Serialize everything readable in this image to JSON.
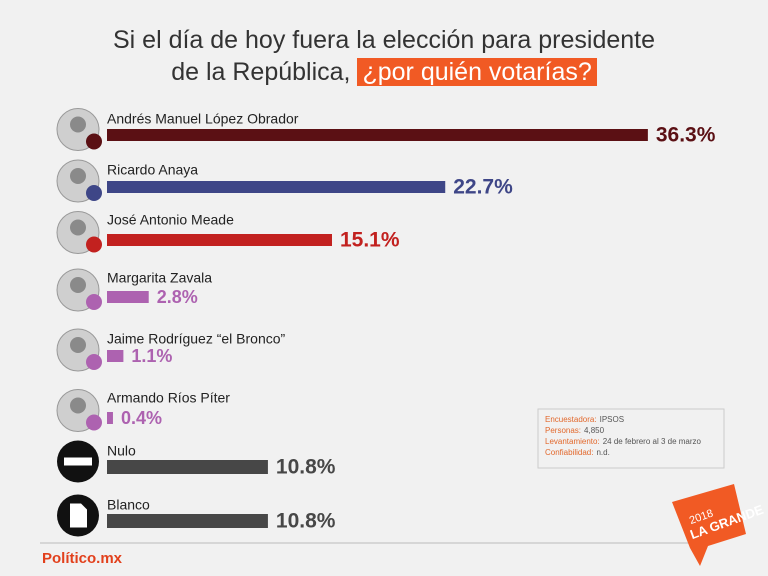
{
  "chart_data": {
    "type": "bar",
    "orientation": "horizontal",
    "title": [
      "Si el día de hoy fuera la elección para presidente",
      "de la República,"
    ],
    "title_highlight": "¿por quién votarías?",
    "categories": [
      "Andrés Manuel López Obrador",
      "Ricardo Anaya",
      "José Antonio Meade",
      "Margarita Zavala",
      "Jaime Rodríguez “el Bronco”",
      "Armando Ríos Píter",
      "Nulo",
      "Blanco"
    ],
    "values": [
      36.3,
      22.7,
      15.1,
      2.8,
      1.1,
      0.4,
      10.8,
      10.8
    ],
    "value_labels": [
      "36.3%",
      "22.7%",
      "15.1%",
      "2.8%",
      "1.1%",
      "0.4%",
      "10.8%",
      "10.8%"
    ],
    "colors": [
      "#5b1014",
      "#3e4687",
      "#c2211f",
      "#ad62b0",
      "#ad62b0",
      "#ad62b0",
      "#474747",
      "#474747"
    ],
    "notes": [
      {
        "label": "Encuestadora:",
        "value": "IPSOS"
      },
      {
        "label": "Personas:",
        "value": "4,850"
      },
      {
        "label": "Levantamiento:",
        "value": "24 de febrero al 3 de marzo"
      },
      {
        "label": "Confiabilidad:",
        "value": "n.d."
      }
    ],
    "source_logo": "Político.mx",
    "badge": [
      "2018",
      "LA GRANDE"
    ]
  }
}
